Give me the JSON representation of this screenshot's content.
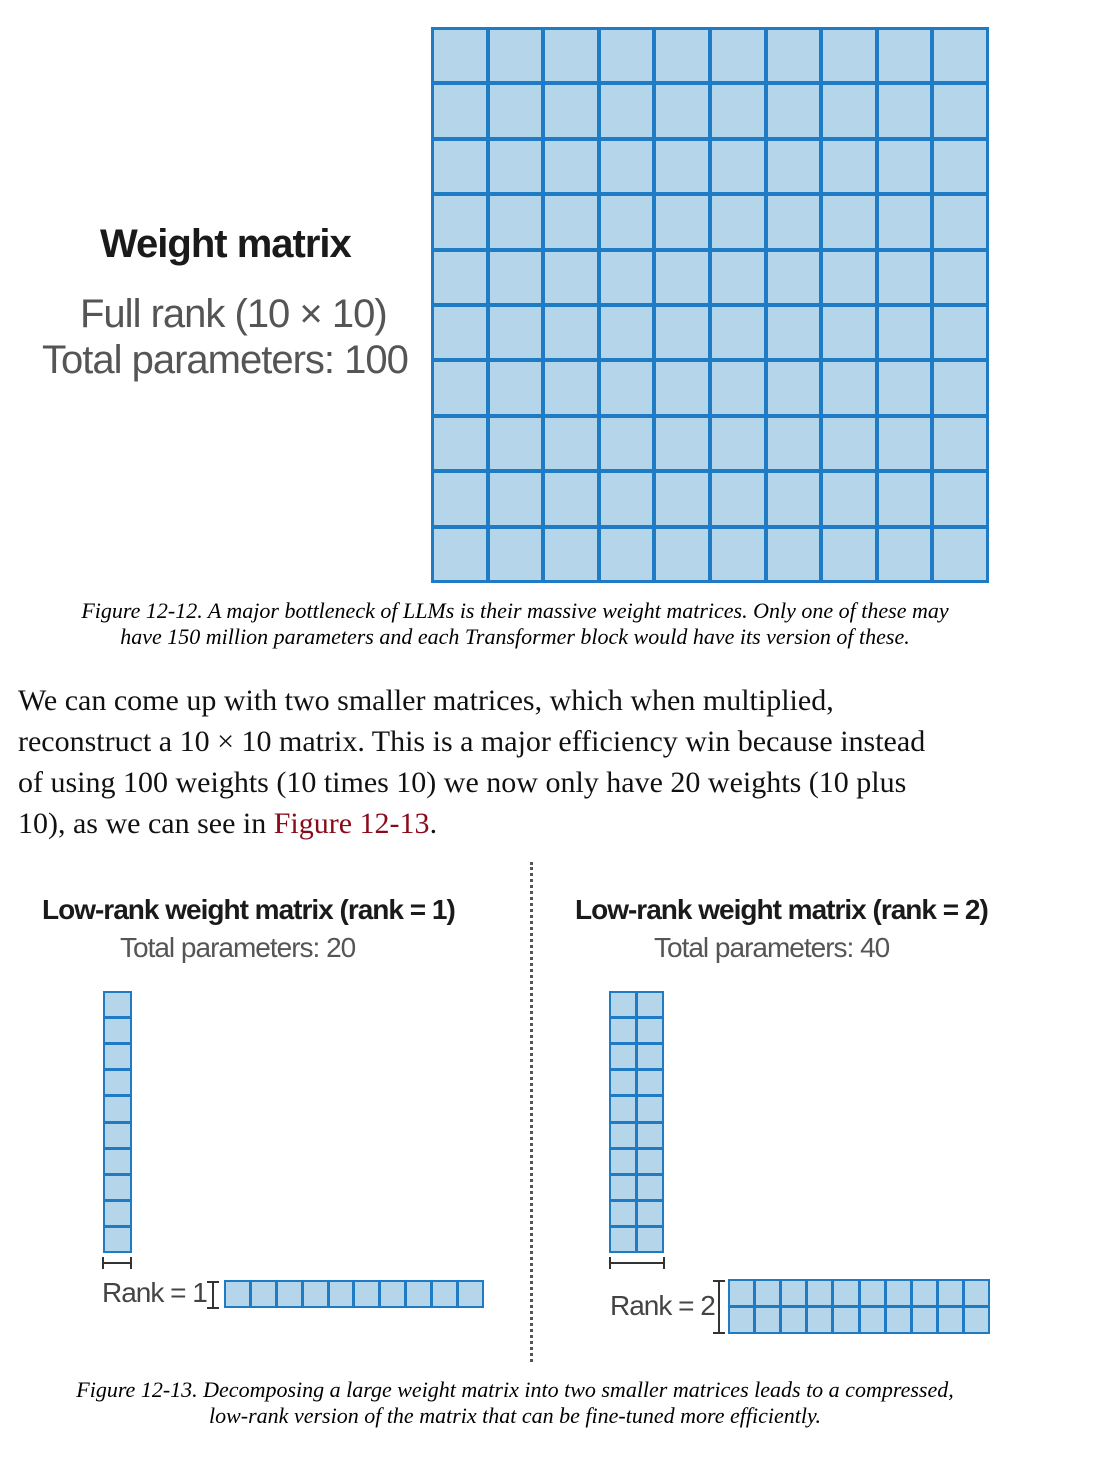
{
  "figure_12_12": {
    "title": "Weight matrix",
    "line1": "Full rank (10 × 10)",
    "line2": "Total parameters: 100",
    "matrix": {
      "rows": 10,
      "cols": 10
    },
    "caption_line1": "Figure 12-12. A major bottleneck of LLMs is their massive weight matrices. Only one of these may",
    "caption_line2": "have 150 million parameters and each Transformer block would have its version of these."
  },
  "paragraph": {
    "line1": "We can come up with two smaller matrices, which when multiplied,",
    "line2": "reconstruct a 10 × 10 matrix. This is a major efficiency win because instead",
    "line3": "of using 100 weights (10 times 10) we now only have 20 weights (10 plus",
    "line4_pre": "10), as we can see in ",
    "line4_link": "Figure 12-13",
    "line4_post": "."
  },
  "figure_12_13": {
    "left": {
      "title": "Low-rank weight matrix (rank = 1)",
      "subtitle": "Total parameters: 20",
      "rank_label": "Rank = 1",
      "rank": 1,
      "size": 10
    },
    "right": {
      "title": "Low-rank weight matrix (rank = 2)",
      "subtitle": "Total parameters: 40",
      "rank_label": "Rank = 2",
      "rank": 2,
      "size": 10
    },
    "caption_line1": "Figure 12-13. Decomposing a large weight matrix into two smaller matrices leads to a compressed,",
    "caption_line2": "low-rank version of the matrix that can be fine-tuned more efficiently."
  },
  "colors": {
    "cell_fill": "#b5d6ea",
    "cell_border": "#1f7cc4",
    "link": "#8b0a1a"
  }
}
